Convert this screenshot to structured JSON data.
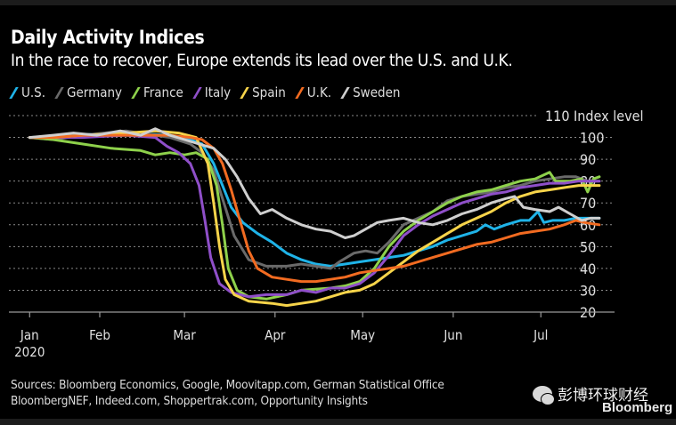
{
  "chart_data": {
    "type": "line",
    "title": "Daily Activity Indices",
    "subtitle": "In the race to recover, Europe extends its lead over the U.S. and U.K.",
    "ylabel": "Index level",
    "ylim": [
      20,
      110
    ],
    "yticks": [
      20,
      30,
      40,
      50,
      60,
      70,
      80,
      90,
      100,
      110
    ],
    "x_unit": "day of 2020 (0 = Jan 1)",
    "xticks": [
      {
        "label": "Jan",
        "day": 7
      },
      {
        "label": "Feb",
        "day": 31
      },
      {
        "label": "Mar",
        "day": 60
      },
      {
        "label": "Apr",
        "day": 91
      },
      {
        "label": "May",
        "day": 121
      },
      {
        "label": "Jun",
        "day": 152
      },
      {
        "label": "Jul",
        "day": 182
      }
    ],
    "xyear": "2020",
    "grid": true,
    "legend_position": "top-left",
    "series": [
      {
        "name": "U.S.",
        "color": "#1fb3e8",
        "points": [
          [
            7,
            100
          ],
          [
            20,
            101
          ],
          [
            40,
            102
          ],
          [
            55,
            101
          ],
          [
            62,
            99
          ],
          [
            66,
            97
          ],
          [
            70,
            88
          ],
          [
            73,
            78
          ],
          [
            76,
            68
          ],
          [
            80,
            61
          ],
          [
            85,
            56
          ],
          [
            90,
            52
          ],
          [
            95,
            47
          ],
          [
            100,
            44
          ],
          [
            105,
            42
          ],
          [
            110,
            41
          ],
          [
            115,
            42
          ],
          [
            120,
            43
          ],
          [
            125,
            44
          ],
          [
            130,
            45
          ],
          [
            135,
            46
          ],
          [
            140,
            48
          ],
          [
            145,
            50
          ],
          [
            150,
            53
          ],
          [
            155,
            55
          ],
          [
            160,
            57
          ],
          [
            163,
            60
          ],
          [
            166,
            58
          ],
          [
            170,
            60
          ],
          [
            175,
            62
          ],
          [
            178,
            62
          ],
          [
            181,
            66
          ],
          [
            183,
            61
          ],
          [
            186,
            62
          ],
          [
            190,
            62
          ],
          [
            194,
            63
          ],
          [
            197,
            63
          ],
          [
            202,
            63
          ]
        ]
      },
      {
        "name": "Germany",
        "color": "#6a6a6a",
        "points": [
          [
            7,
            100
          ],
          [
            15,
            99
          ],
          [
            25,
            101
          ],
          [
            40,
            103
          ],
          [
            55,
            100
          ],
          [
            62,
            97
          ],
          [
            66,
            93
          ],
          [
            70,
            85
          ],
          [
            73,
            72
          ],
          [
            77,
            55
          ],
          [
            82,
            44
          ],
          [
            88,
            41
          ],
          [
            95,
            41
          ],
          [
            100,
            42
          ],
          [
            105,
            41
          ],
          [
            110,
            40
          ],
          [
            113,
            43
          ],
          [
            118,
            47
          ],
          [
            122,
            48
          ],
          [
            126,
            47
          ],
          [
            130,
            52
          ],
          [
            135,
            60
          ],
          [
            140,
            63
          ],
          [
            145,
            66
          ],
          [
            150,
            71
          ],
          [
            155,
            73
          ],
          [
            160,
            74
          ],
          [
            165,
            75
          ],
          [
            170,
            77
          ],
          [
            175,
            78
          ],
          [
            180,
            80
          ],
          [
            185,
            81
          ],
          [
            190,
            82
          ],
          [
            194,
            82
          ],
          [
            198,
            80
          ],
          [
            202,
            80
          ]
        ]
      },
      {
        "name": "France",
        "color": "#8ed14b",
        "points": [
          [
            7,
            100
          ],
          [
            15,
            99
          ],
          [
            25,
            97
          ],
          [
            35,
            95
          ],
          [
            45,
            94
          ],
          [
            50,
            92
          ],
          [
            55,
            93
          ],
          [
            60,
            92
          ],
          [
            64,
            93
          ],
          [
            68,
            90
          ],
          [
            71,
            78
          ],
          [
            73,
            60
          ],
          [
            75,
            40
          ],
          [
            78,
            30
          ],
          [
            82,
            27
          ],
          [
            88,
            26
          ],
          [
            95,
            28
          ],
          [
            100,
            30
          ],
          [
            110,
            31
          ],
          [
            115,
            32
          ],
          [
            120,
            34
          ],
          [
            125,
            40
          ],
          [
            130,
            50
          ],
          [
            135,
            57
          ],
          [
            140,
            62
          ],
          [
            145,
            66
          ],
          [
            150,
            70
          ],
          [
            155,
            73
          ],
          [
            160,
            75
          ],
          [
            165,
            76
          ],
          [
            170,
            78
          ],
          [
            175,
            80
          ],
          [
            180,
            81
          ],
          [
            185,
            84
          ],
          [
            187,
            80
          ],
          [
            192,
            80
          ],
          [
            196,
            81
          ],
          [
            198,
            75
          ],
          [
            200,
            81
          ],
          [
            202,
            82
          ]
        ]
      },
      {
        "name": "Italy",
        "color": "#8f4fc9",
        "points": [
          [
            7,
            100
          ],
          [
            15,
            100
          ],
          [
            25,
            100
          ],
          [
            40,
            101
          ],
          [
            50,
            100
          ],
          [
            54,
            96
          ],
          [
            58,
            93
          ],
          [
            62,
            88
          ],
          [
            65,
            78
          ],
          [
            67,
            62
          ],
          [
            69,
            45
          ],
          [
            72,
            33
          ],
          [
            76,
            29
          ],
          [
            82,
            27
          ],
          [
            88,
            28
          ],
          [
            95,
            28
          ],
          [
            100,
            30
          ],
          [
            105,
            29
          ],
          [
            110,
            31
          ],
          [
            115,
            31
          ],
          [
            120,
            33
          ],
          [
            125,
            38
          ],
          [
            130,
            46
          ],
          [
            135,
            55
          ],
          [
            140,
            60
          ],
          [
            145,
            64
          ],
          [
            150,
            67
          ],
          [
            155,
            70
          ],
          [
            160,
            72
          ],
          [
            165,
            74
          ],
          [
            170,
            75
          ],
          [
            175,
            77
          ],
          [
            180,
            78
          ],
          [
            185,
            79
          ],
          [
            190,
            79
          ],
          [
            195,
            80
          ],
          [
            200,
            80
          ],
          [
            202,
            80
          ]
        ]
      },
      {
        "name": "Spain",
        "color": "#f7d44a",
        "points": [
          [
            7,
            100
          ],
          [
            15,
            100
          ],
          [
            25,
            101
          ],
          [
            40,
            102
          ],
          [
            50,
            103
          ],
          [
            58,
            102
          ],
          [
            64,
            100
          ],
          [
            68,
            88
          ],
          [
            70,
            70
          ],
          [
            72,
            50
          ],
          [
            74,
            35
          ],
          [
            77,
            28
          ],
          [
            82,
            25
          ],
          [
            90,
            24
          ],
          [
            95,
            23
          ],
          [
            100,
            24
          ],
          [
            105,
            25
          ],
          [
            110,
            27
          ],
          [
            115,
            29
          ],
          [
            120,
            30
          ],
          [
            125,
            33
          ],
          [
            130,
            38
          ],
          [
            135,
            43
          ],
          [
            140,
            48
          ],
          [
            145,
            52
          ],
          [
            150,
            56
          ],
          [
            155,
            60
          ],
          [
            160,
            63
          ],
          [
            165,
            66
          ],
          [
            170,
            70
          ],
          [
            175,
            73
          ],
          [
            180,
            75
          ],
          [
            185,
            76
          ],
          [
            190,
            77
          ],
          [
            195,
            78
          ],
          [
            198,
            78
          ],
          [
            202,
            78
          ]
        ]
      },
      {
        "name": "U.K.",
        "color": "#f26b21",
        "points": [
          [
            7,
            100
          ],
          [
            15,
            100
          ],
          [
            25,
            101
          ],
          [
            35,
            101
          ],
          [
            45,
            101
          ],
          [
            55,
            101
          ],
          [
            62,
            100
          ],
          [
            66,
            99
          ],
          [
            70,
            95
          ],
          [
            73,
            88
          ],
          [
            76,
            76
          ],
          [
            79,
            62
          ],
          [
            82,
            48
          ],
          [
            85,
            40
          ],
          [
            90,
            36
          ],
          [
            95,
            35
          ],
          [
            100,
            34
          ],
          [
            105,
            34
          ],
          [
            110,
            35
          ],
          [
            115,
            36
          ],
          [
            120,
            38
          ],
          [
            125,
            39
          ],
          [
            130,
            40
          ],
          [
            135,
            41
          ],
          [
            140,
            43
          ],
          [
            145,
            45
          ],
          [
            150,
            47
          ],
          [
            155,
            49
          ],
          [
            160,
            51
          ],
          [
            165,
            52
          ],
          [
            170,
            54
          ],
          [
            175,
            56
          ],
          [
            180,
            57
          ],
          [
            185,
            58
          ],
          [
            190,
            60
          ],
          [
            194,
            62
          ],
          [
            197,
            61
          ],
          [
            202,
            60
          ]
        ]
      },
      {
        "name": "Sweden",
        "color": "#cfcfcf",
        "points": [
          [
            7,
            100
          ],
          [
            15,
            101
          ],
          [
            22,
            102
          ],
          [
            30,
            101
          ],
          [
            38,
            103
          ],
          [
            45,
            101
          ],
          [
            50,
            104
          ],
          [
            55,
            101
          ],
          [
            60,
            99
          ],
          [
            65,
            97
          ],
          [
            70,
            95
          ],
          [
            74,
            90
          ],
          [
            78,
            82
          ],
          [
            82,
            72
          ],
          [
            86,
            65
          ],
          [
            90,
            67
          ],
          [
            95,
            63
          ],
          [
            100,
            60
          ],
          [
            105,
            58
          ],
          [
            110,
            57
          ],
          [
            115,
            54
          ],
          [
            118,
            55
          ],
          [
            122,
            58
          ],
          [
            126,
            61
          ],
          [
            130,
            62
          ],
          [
            135,
            63
          ],
          [
            140,
            61
          ],
          [
            145,
            60
          ],
          [
            150,
            62
          ],
          [
            155,
            65
          ],
          [
            160,
            67
          ],
          [
            165,
            70
          ],
          [
            170,
            72
          ],
          [
            173,
            73
          ],
          [
            176,
            68
          ],
          [
            180,
            67
          ],
          [
            185,
            66
          ],
          [
            188,
            68
          ],
          [
            192,
            65
          ],
          [
            196,
            62
          ],
          [
            199,
            63
          ],
          [
            202,
            63
          ]
        ]
      }
    ],
    "source": "Sources: Bloomberg Economics, Google, Moovitapp.com, German Statistical Office BloombergNEF, Indeed.com, Shoppertrak.com, Opportunity Insights"
  },
  "header": {
    "title": "Daily Activity Indices",
    "subtitle": "In the race to recover, Europe extends its lead over the U.S. and U.K."
  },
  "legend": [
    {
      "label": "U.S.",
      "color": "#1fb3e8"
    },
    {
      "label": "Germany",
      "color": "#6a6a6a"
    },
    {
      "label": "France",
      "color": "#8ed14b"
    },
    {
      "label": "Italy",
      "color": "#8f4fc9"
    },
    {
      "label": "Spain",
      "color": "#f7d44a"
    },
    {
      "label": "U.K.",
      "color": "#f26b21"
    },
    {
      "label": "Sweden",
      "color": "#cfcfcf"
    }
  ],
  "footer": {
    "sources_line1": "Sources: Bloomberg Economics, Google, Moovitapp.com, German Statistical Office",
    "sources_line2": "BloombergNEF, Indeed.com, Shoppertrak.com, Opportunity Insights",
    "watermark_text": "彭博环球财经",
    "brand": "Bloomberg"
  }
}
